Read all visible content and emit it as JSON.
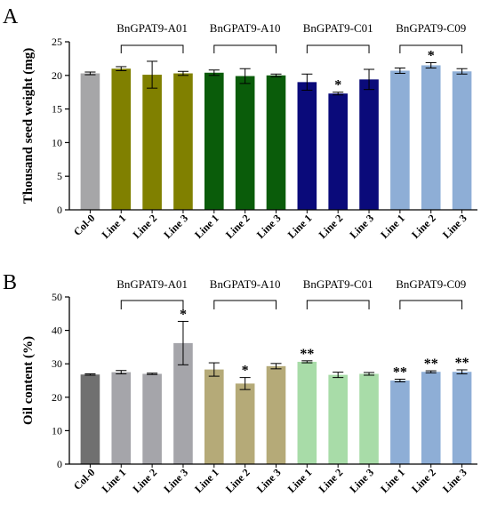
{
  "chart_data": [
    {
      "panel": "A",
      "type": "bar",
      "ylabel": "Thousand seed weight (mg)",
      "ylim": [
        0,
        25
      ],
      "yticks": [
        0,
        5,
        10,
        15,
        20,
        25
      ],
      "categories": [
        "Col-0",
        "Line 1",
        "Line 2",
        "Line 3",
        "Line 1",
        "Line 2",
        "Line 3",
        "Line 1",
        "Line 2",
        "Line 3",
        "Line 1",
        "Line 2",
        "Line 3"
      ],
      "values": [
        20.3,
        21.0,
        20.1,
        20.3,
        20.4,
        19.9,
        20.0,
        19.0,
        17.3,
        19.4,
        20.7,
        21.5,
        20.6
      ],
      "errors": [
        0.2,
        0.3,
        2.0,
        0.3,
        0.4,
        1.1,
        0.2,
        1.2,
        0.2,
        1.5,
        0.4,
        0.4,
        0.4
      ],
      "colors": [
        "#a6a6a8",
        "#808000",
        "#808000",
        "#808000",
        "#0a5c0a",
        "#0a5c0a",
        "#0a5c0a",
        "#0a0a7a",
        "#0a0a7a",
        "#0a0a7a",
        "#8eaed6",
        "#8eaed6",
        "#8eaed6"
      ],
      "significance": [
        "",
        "",
        "",
        "",
        "",
        "",
        "",
        "",
        "*",
        "",
        "",
        "*",
        ""
      ],
      "groups": [
        {
          "label": "BnGPAT9-A01",
          "from": 1,
          "to": 3
        },
        {
          "label": "BnGPAT9-A10",
          "from": 4,
          "to": 6
        },
        {
          "label": "BnGPAT9-C01",
          "from": 7,
          "to": 9
        },
        {
          "label": "BnGPAT9-C09",
          "from": 10,
          "to": 12
        }
      ]
    },
    {
      "panel": "B",
      "type": "bar",
      "ylabel": "Oil content (%)",
      "ylim": [
        0,
        50
      ],
      "yticks": [
        0,
        10,
        20,
        30,
        40,
        50
      ],
      "categories": [
        "Col-0",
        "Line 1",
        "Line 2",
        "Line 3",
        "Line 1",
        "Line 2",
        "Line 3",
        "Line 1",
        "Line 2",
        "Line 3",
        "Line 1",
        "Line 2",
        "Line 3"
      ],
      "values": [
        26.8,
        27.5,
        27.0,
        36.2,
        28.3,
        24.1,
        29.3,
        30.6,
        26.7,
        27.0,
        25.0,
        27.6,
        27.6
      ],
      "errors": [
        0.2,
        0.5,
        0.2,
        6.5,
        2.0,
        1.8,
        0.8,
        0.3,
        0.8,
        0.4,
        0.4,
        0.3,
        0.6
      ],
      "colors": [
        "#707070",
        "#a5a5aa",
        "#a5a5aa",
        "#a5a5aa",
        "#b5aa78",
        "#b5aa78",
        "#b5aa78",
        "#a8dca8",
        "#a8dca8",
        "#a8dca8",
        "#8eaed6",
        "#8eaed6",
        "#8eaed6"
      ],
      "significance": [
        "",
        "",
        "",
        "*",
        "",
        "*",
        "",
        "**",
        "",
        "",
        "**",
        "**",
        "**"
      ],
      "groups": [
        {
          "label": "BnGPAT9-A01",
          "from": 1,
          "to": 3
        },
        {
          "label": "BnGPAT9-A10",
          "from": 4,
          "to": 6
        },
        {
          "label": "BnGPAT9-C01",
          "from": 7,
          "to": 9
        },
        {
          "label": "BnGPAT9-C09",
          "from": 10,
          "to": 12
        }
      ]
    }
  ]
}
